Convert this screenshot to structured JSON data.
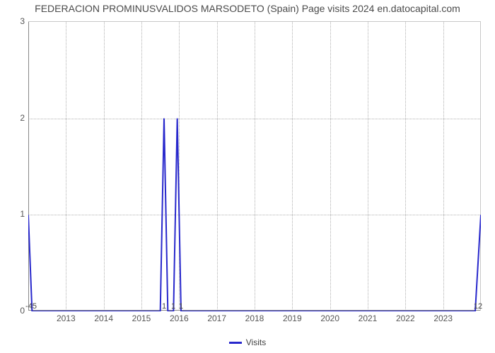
{
  "chart": {
    "type": "line",
    "title": "FEDERACION PROMINUSVALIDOS MARSODETO (Spain) Page visits 2024 en.datocapital.com",
    "title_fontsize": 14,
    "title_color": "#4a4a4a",
    "background_color": "#ffffff",
    "plot_border_color": "#c8c8c8",
    "grid_color": "#b0b0b0",
    "axis_color": "#888888",
    "tick_label_color": "#555555",
    "tick_label_fontsize": 12,
    "data_label_fontsize": 11,
    "data_label_color": "#444444",
    "ylim": [
      0,
      3
    ],
    "yticks": [
      0,
      1,
      2,
      3
    ],
    "xlim": [
      2012,
      2024
    ],
    "xticks": [
      2013,
      2014,
      2015,
      2016,
      2017,
      2018,
      2019,
      2020,
      2021,
      2022,
      2023
    ],
    "x_left_boundary_label": "-45",
    "x_right_boundary_label": "12",
    "series": {
      "name": "Visits",
      "color": "#2828cc",
      "line_width": 2,
      "points": [
        {
          "x": 2012.0,
          "y": 1.0
        },
        {
          "x": 2012.1,
          "y": 0.0
        },
        {
          "x": 2015.5,
          "y": 0.0
        },
        {
          "x": 2015.6,
          "y": 2.0
        },
        {
          "x": 2015.7,
          "y": 0.0
        },
        {
          "x": 2015.85,
          "y": 0.0
        },
        {
          "x": 2015.95,
          "y": 2.0
        },
        {
          "x": 2016.05,
          "y": 0.0
        },
        {
          "x": 2023.85,
          "y": 0.0
        },
        {
          "x": 2024.0,
          "y": 1.0
        }
      ]
    },
    "data_labels": [
      {
        "x": 2015.6,
        "text": "1"
      },
      {
        "x": 2015.85,
        "text": "1"
      },
      {
        "x": 2016.05,
        "text": "1"
      }
    ],
    "legend": {
      "label": "Visits",
      "swatch_color": "#2828cc"
    }
  }
}
